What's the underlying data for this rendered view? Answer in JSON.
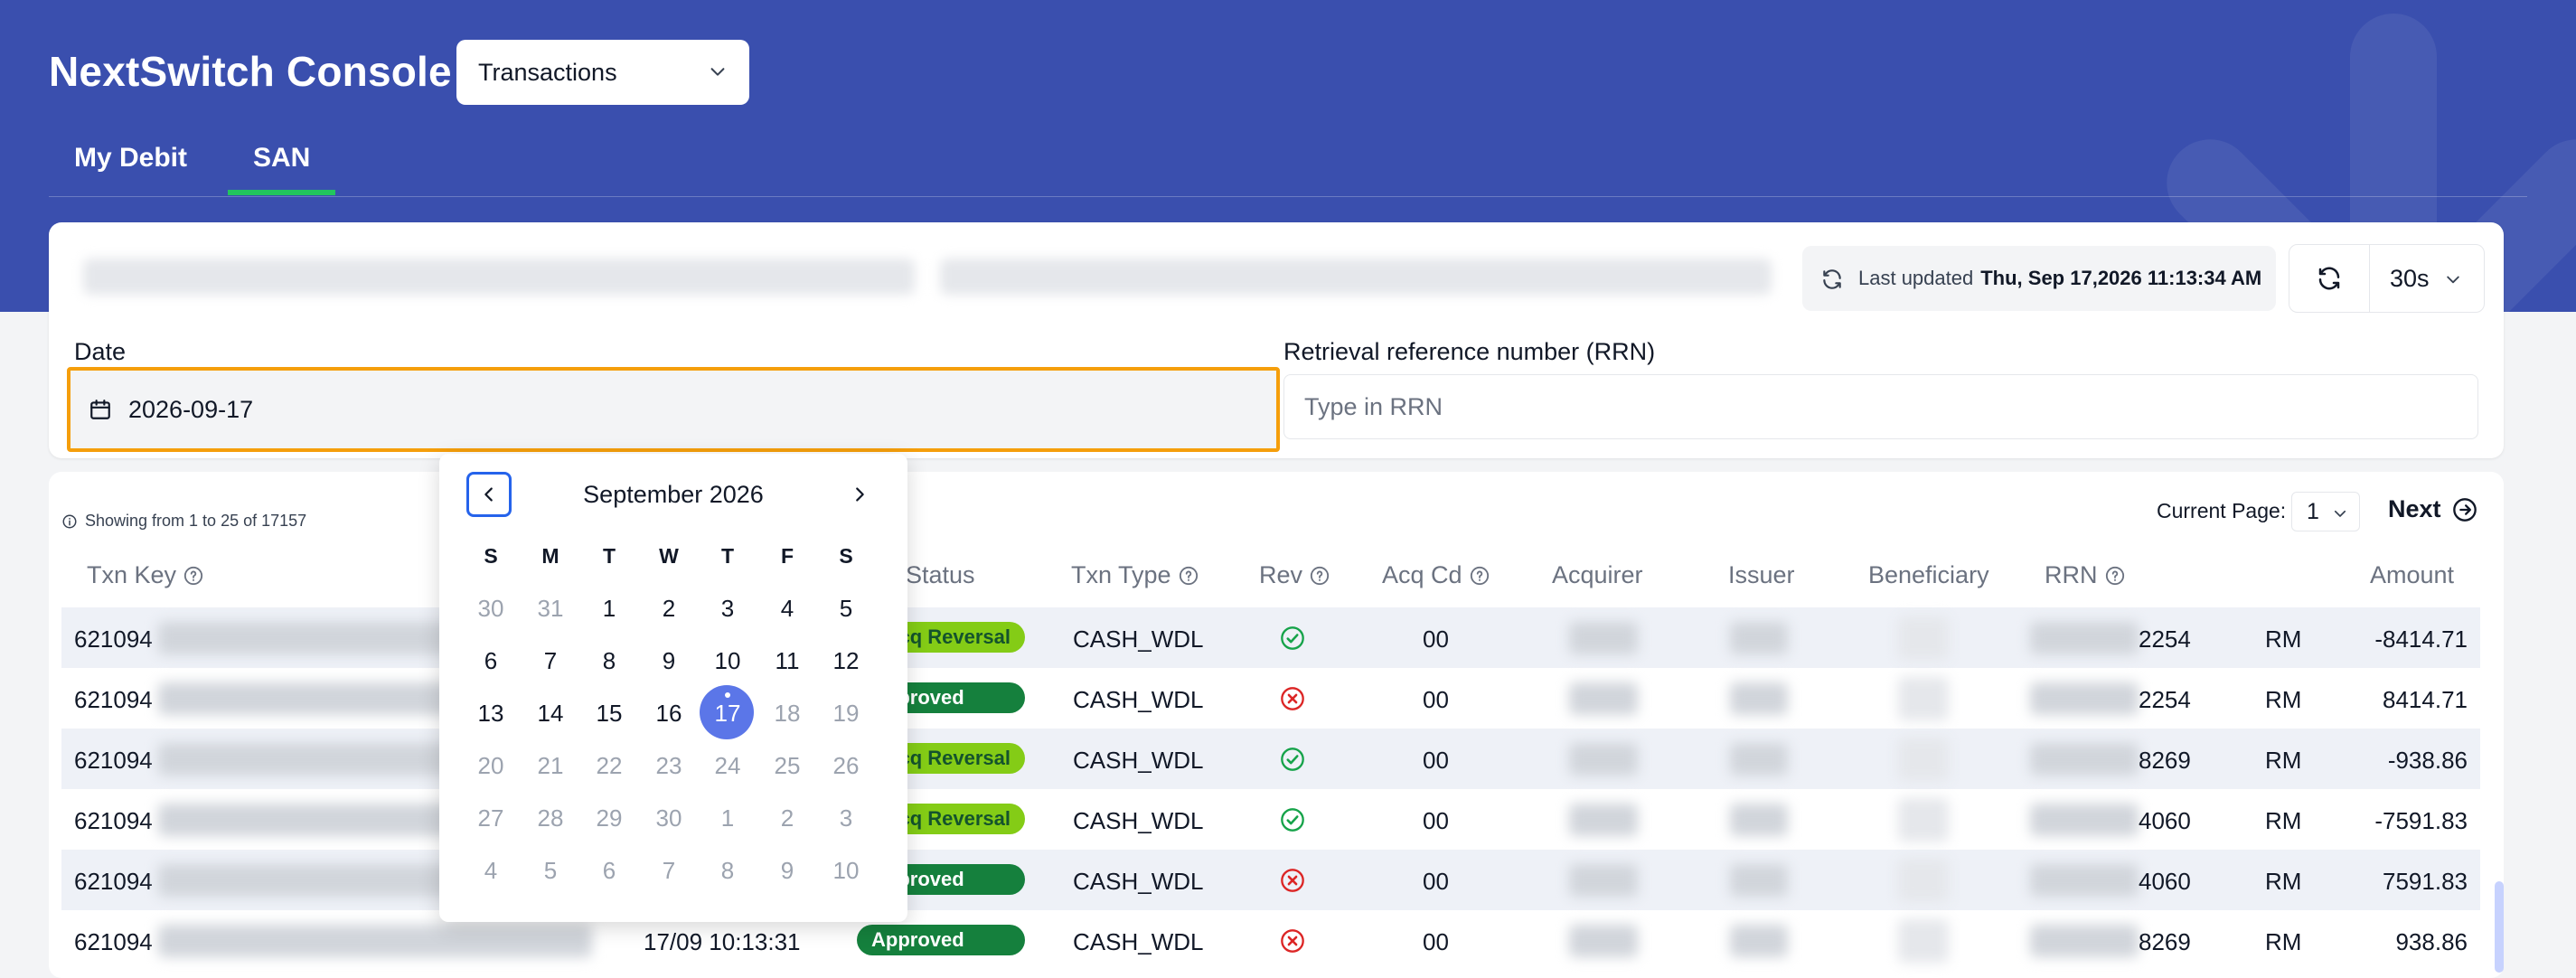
{
  "header": {
    "app_title": "NextSwitch Console",
    "module_select": "Transactions",
    "tabs": [
      {
        "label": "My Debit"
      },
      {
        "label": "SAN"
      }
    ],
    "active_tab": "SAN"
  },
  "filters": {
    "last_updated_prefix": "Last updated",
    "last_updated_value": "Thu, Sep 17,2026 11:13:34 AM",
    "refresh_interval": "30s",
    "date_label": "Date",
    "date_value": "2026-09-17",
    "rrn_label": "Retrieval reference number (RRN)",
    "rrn_placeholder": "Type in RRN"
  },
  "calendar": {
    "month_title": "September 2026",
    "weekday_headers": [
      "S",
      "M",
      "T",
      "W",
      "T",
      "F",
      "S"
    ],
    "days": [
      [
        "30",
        "31",
        "1",
        "2",
        "3",
        "4",
        "5"
      ],
      [
        "6",
        "7",
        "8",
        "9",
        "10",
        "11",
        "12"
      ],
      [
        "13",
        "14",
        "15",
        "16",
        "17",
        "18",
        "19"
      ],
      [
        "20",
        "21",
        "22",
        "23",
        "24",
        "25",
        "26"
      ],
      [
        "27",
        "28",
        "29",
        "30",
        "1",
        "2",
        "3"
      ],
      [
        "4",
        "5",
        "6",
        "7",
        "8",
        "9",
        "10"
      ]
    ],
    "selected_day": "17"
  },
  "table": {
    "showing_text": "Showing from 1 to 25 of 17157",
    "current_page_label": "Current Page:",
    "current_page": "1",
    "next_label": "Next",
    "columns": [
      "Txn Key",
      "Status",
      "Txn Type",
      "Rev",
      "Acq Cd",
      "Acquirer",
      "Issuer",
      "Beneficiary",
      "RRN",
      "Amount"
    ],
    "rows": [
      {
        "txn_key": "621094",
        "time": "",
        "status": "Acq Reversal",
        "status_kind": "reversal",
        "txn_type": "CASH_WDL",
        "rev": "check",
        "acq_cd": "00",
        "rrn_tail": "2254",
        "currency": "RM",
        "amount": "-8414.71"
      },
      {
        "txn_key": "621094",
        "time": "",
        "status": "Approved",
        "status_kind": "approved",
        "txn_type": "CASH_WDL",
        "rev": "cross",
        "acq_cd": "00",
        "rrn_tail": "2254",
        "currency": "RM",
        "amount": "8414.71"
      },
      {
        "txn_key": "621094",
        "time": "",
        "status": "Acq Reversal",
        "status_kind": "reversal",
        "txn_type": "CASH_WDL",
        "rev": "check",
        "acq_cd": "00",
        "rrn_tail": "8269",
        "currency": "RM",
        "amount": "-938.86"
      },
      {
        "txn_key": "621094",
        "time": "",
        "status": "Acq Reversal",
        "status_kind": "reversal",
        "txn_type": "CASH_WDL",
        "rev": "check",
        "acq_cd": "00",
        "rrn_tail": "4060",
        "currency": "RM",
        "amount": "-7591.83"
      },
      {
        "txn_key": "621094",
        "time": "",
        "status": "Approved",
        "status_kind": "approved",
        "txn_type": "CASH_WDL",
        "rev": "cross",
        "acq_cd": "00",
        "rrn_tail": "4060",
        "currency": "RM",
        "amount": "7591.83"
      },
      {
        "txn_key": "621094",
        "time": "17/09 10:13:31",
        "status": "Approved",
        "status_kind": "approved",
        "txn_type": "CASH_WDL",
        "rev": "cross",
        "acq_cd": "00",
        "rrn_tail": "8269",
        "currency": "RM",
        "amount": "938.86"
      }
    ]
  },
  "colors": {
    "header_bg": "#3a4fae",
    "tab_underline": "#22c55e",
    "focus_border": "#f59e0b",
    "approved": "#15803d",
    "reversal": "#84cc16",
    "check": "#16a34a",
    "cross": "#dc2626",
    "calendar_selected": "#5b76e8"
  },
  "icons": {
    "module_chevron": "chevron-down-icon",
    "refresh": "refresh-icon",
    "calendar": "calendar-icon",
    "info": "info-icon",
    "help": "help-circle-icon",
    "next": "arrow-right-circle-icon",
    "prev_month": "chevron-left-icon",
    "next_month": "chevron-right-icon"
  }
}
